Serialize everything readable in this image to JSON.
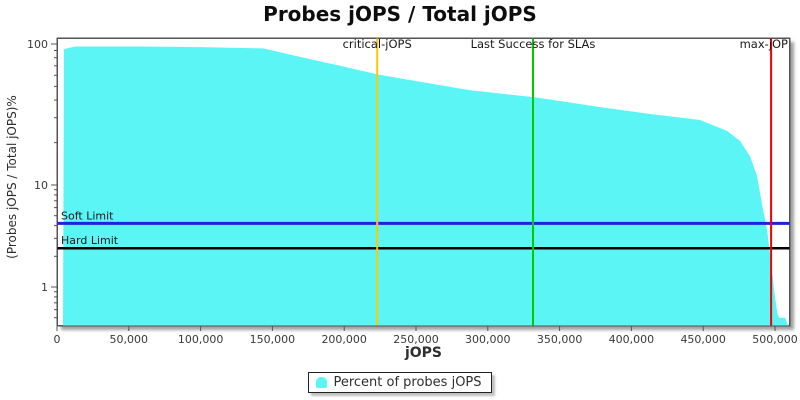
{
  "chart": {
    "title": "Probes jOPS / Total jOPS",
    "xlabel": "jOPS",
    "ylabel": "(Probes jOPS / Total jOPS)%",
    "legend": {
      "label": "Percent of probes jOPS",
      "swatch_color": "#5CF5F5"
    }
  },
  "chart_data": {
    "type": "area",
    "title": "Probes jOPS / Total jOPS",
    "xlabel": "jOPS",
    "ylabel": "(Probes jOPS / Total jOPS)%",
    "x_range": [
      0,
      510000
    ],
    "y_scale": "log",
    "y_ticks": [
      {
        "v": 100,
        "label": "100"
      },
      {
        "v": 10,
        "label": "10"
      },
      {
        "v": 1,
        "label": "1"
      }
    ],
    "x_ticks": [
      {
        "v": 0,
        "label": "0"
      },
      {
        "v": 50000,
        "label": "50,000"
      },
      {
        "v": 100000,
        "label": "100,000"
      },
      {
        "v": 150000,
        "label": "150,000"
      },
      {
        "v": 200000,
        "label": "200,000"
      },
      {
        "v": 250000,
        "label": "250,000"
      },
      {
        "v": 300000,
        "label": "300,000"
      },
      {
        "v": 350000,
        "label": "350,000"
      },
      {
        "v": 400000,
        "label": "400,000"
      },
      {
        "v": 450000,
        "label": "450,000"
      },
      {
        "v": 500000,
        "label": "500,000"
      }
    ],
    "series": [
      {
        "name": "Percent of probes jOPS",
        "color": "#5CF5F5",
        "points": [
          [
            4200,
            0.41
          ],
          [
            4900,
            92
          ],
          [
            12500,
            96
          ],
          [
            30000,
            96
          ],
          [
            57800,
            96
          ],
          [
            99600,
            95
          ],
          [
            143500,
            93
          ],
          [
            169200,
            81
          ],
          [
            197000,
            70
          ],
          [
            222800,
            61
          ],
          [
            252800,
            54
          ],
          [
            287600,
            47
          ],
          [
            331500,
            42
          ],
          [
            350300,
            39.4
          ],
          [
            378100,
            35.7
          ],
          [
            413000,
            31.9
          ],
          [
            447800,
            28.9
          ],
          [
            466600,
            24.2
          ],
          [
            475700,
            20.5
          ],
          [
            482600,
            16
          ],
          [
            487500,
            11.6
          ],
          [
            491700,
            5.7
          ],
          [
            494500,
            3.6
          ],
          [
            497300,
            1.76
          ],
          [
            499400,
            0.93
          ],
          [
            501500,
            0.56
          ],
          [
            502900,
            0.5
          ],
          [
            507100,
            0.5
          ],
          [
            508500,
            0.44
          ],
          [
            509900,
            0.41
          ]
        ]
      }
    ],
    "markers": [
      {
        "id": "critical-jops",
        "label": "critical-jOPS",
        "x": 223000,
        "color": "#FFC800"
      },
      {
        "id": "last-success-slas",
        "label": "Last Success for SLAs",
        "x": 331500,
        "color": "#00CC00"
      },
      {
        "id": "max-jops",
        "label": "max-jOP",
        "x": 497300,
        "color": "#EE0000"
      }
    ],
    "limits": [
      {
        "id": "soft-limit",
        "label": "Soft Limit",
        "y": 4.2,
        "color": "#2020E0",
        "width": 3
      },
      {
        "id": "hard-limit",
        "label": "Hard Limit",
        "y": 2.4,
        "color": "#000000",
        "width": 2.5
      }
    ],
    "legend": {
      "position": "bottom",
      "entries": [
        "Percent of probes jOPS"
      ]
    }
  }
}
